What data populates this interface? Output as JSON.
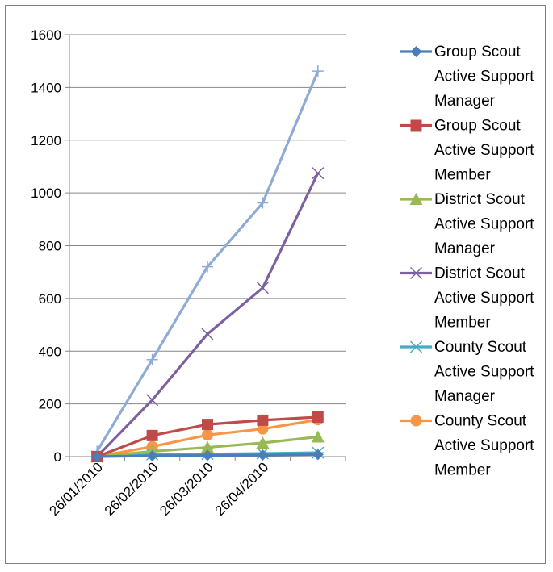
{
  "chart_data": {
    "type": "line",
    "title": "",
    "xlabel": "",
    "ylabel": "",
    "ylim": [
      0,
      1600
    ],
    "y_ticks": [
      "0",
      "200",
      "400",
      "600",
      "800",
      "1000",
      "1200",
      "1400",
      "1600"
    ],
    "categories": [
      "26/01/2010",
      "26/02/2010",
      "26/03/2010",
      "26/04/2010",
      ""
    ],
    "grid": true,
    "legend_position": "right",
    "series": [
      {
        "name": "Group Scout Active Support Manager",
        "legend_lines": [
          "Group Scout",
          "Active Support",
          "Manager"
        ],
        "color": "#4a7ebb",
        "marker": "diamond",
        "values": [
          0,
          3,
          5,
          6,
          8
        ]
      },
      {
        "name": "Group Scout Active Support Member",
        "legend_lines": [
          "Group Scout",
          "Active Support",
          "Member"
        ],
        "color": "#be4b48",
        "marker": "square",
        "values": [
          0,
          80,
          122,
          138,
          150
        ]
      },
      {
        "name": "District Scout Active Support Manager",
        "legend_lines": [
          "District Scout",
          "Active Support",
          "Manager"
        ],
        "color": "#98b954",
        "marker": "triangle",
        "values": [
          0,
          20,
          35,
          52,
          75
        ]
      },
      {
        "name": "District Scout Active Support Member",
        "legend_lines": [
          "District Scout",
          "Active Support",
          "Member"
        ],
        "color": "#7d60a0",
        "marker": "x",
        "values": [
          0,
          215,
          465,
          640,
          1075
        ]
      },
      {
        "name": "County Scout Active Support Manager",
        "legend_lines": [
          "County Scout",
          "Active Support",
          "Manager"
        ],
        "color": "#46aac5",
        "marker": "star",
        "values": [
          0,
          8,
          10,
          12,
          15
        ]
      },
      {
        "name": "County Scout Active Support Member",
        "legend_lines": [
          "County Scout",
          "Active Support",
          "Member"
        ],
        "color": "#f79646",
        "marker": "circle",
        "values": [
          0,
          38,
          82,
          105,
          140
        ]
      },
      {
        "name": "",
        "legend_lines": [],
        "color": "#8eabd6",
        "marker": "plus",
        "values": [
          20,
          368,
          720,
          962,
          1462
        ]
      }
    ]
  }
}
